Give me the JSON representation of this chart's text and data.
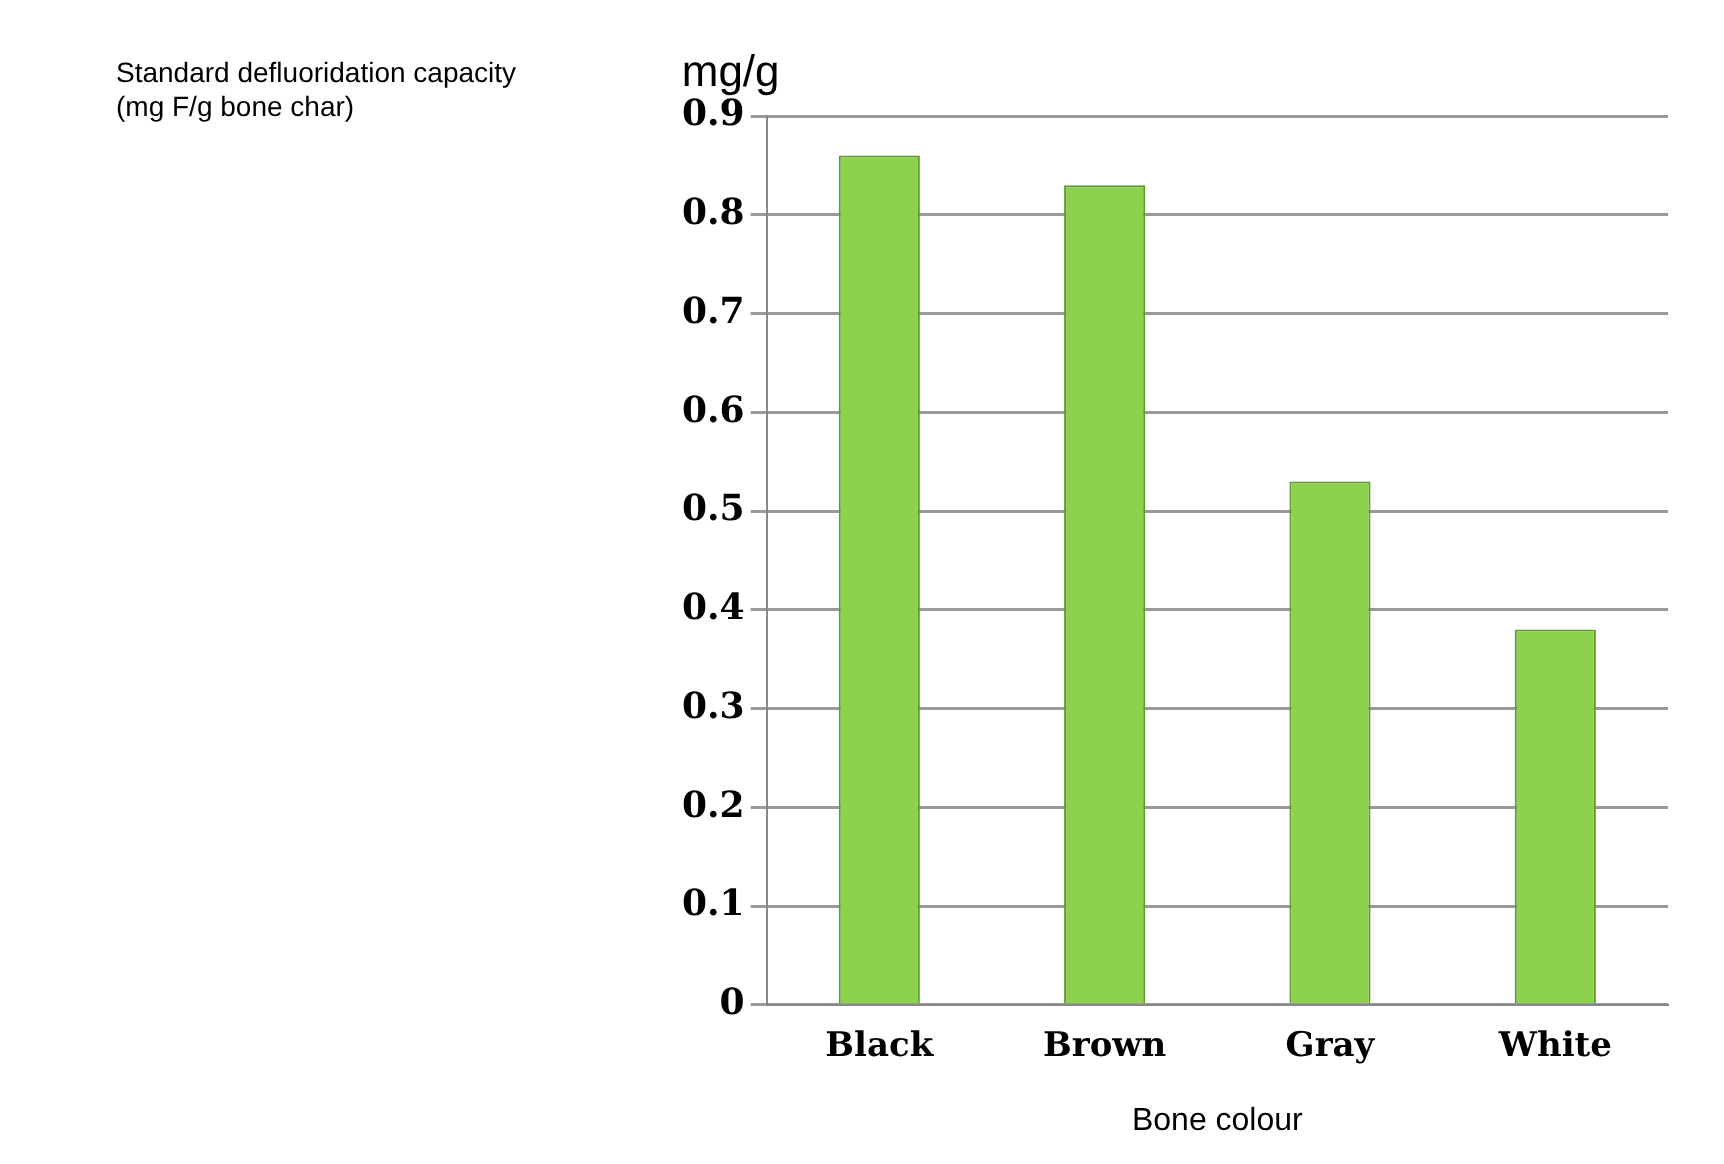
{
  "chart_data": {
    "type": "bar",
    "title": "Standard defluoridation capacity\n(mg F/g bone char)",
    "ylabel": "mg/g",
    "xlabel": "Bone colour",
    "categories": [
      "Black",
      "Brown",
      "Gray",
      "White"
    ],
    "values": [
      0.86,
      0.83,
      0.53,
      0.38
    ],
    "color": "#8ed14f",
    "ylim": [
      0,
      0.9
    ],
    "yticks": [
      0,
      0.1,
      0.2,
      0.3,
      0.4,
      0.5,
      0.6,
      0.7,
      0.8,
      0.9
    ],
    "grid": "y"
  }
}
